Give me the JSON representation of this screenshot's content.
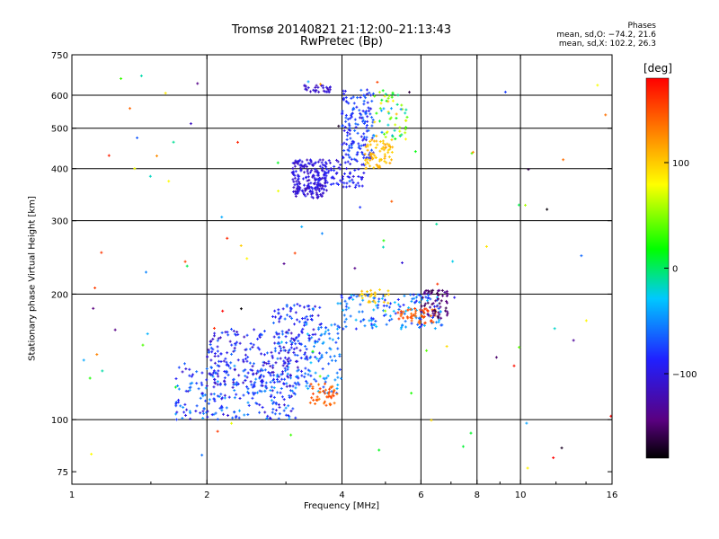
{
  "header": {
    "title": "Tromsø 20140821 21:12:00–21:13:43",
    "subtitle": "RwPretec (Bp)",
    "stats_title": "Phases",
    "stats_o": "mean, sd,O: −74.2, 21.6",
    "stats_x": "mean, sd,X: 102.2, 26.3"
  },
  "colorbar": {
    "label": "[deg]",
    "range": [
      -180,
      180
    ],
    "ticks": [
      100,
      0,
      -100
    ],
    "tick_labels": [
      "100",
      "0",
      "−100"
    ],
    "colors": [
      "#000000",
      "#5a0080",
      "#2020ff",
      "#00c8ff",
      "#00ff00",
      "#ffff00",
      "#ff8000",
      "#ff0000"
    ]
  },
  "chart_data": {
    "type": "scatter",
    "title": "Tromsø 20140821 21:12:00–21:13:43",
    "subtitle": "RwPretec (Bp)",
    "xlabel": "Frequency [MHz]",
    "ylabel": "Stationary phase Virtual Height [km]",
    "x_scale": "log",
    "y_scale": "log",
    "xlim": [
      1,
      16
    ],
    "ylim": [
      70,
      750
    ],
    "x_ticks": [
      1,
      2,
      4,
      6,
      8,
      10,
      16
    ],
    "x_tick_labels": [
      "1",
      "2",
      "4",
      "6",
      "8",
      "10",
      "16"
    ],
    "y_ticks": [
      75,
      100,
      200,
      300,
      400,
      500,
      600,
      750
    ],
    "y_tick_labels": [
      "75",
      "100",
      "200",
      "300",
      "400",
      "500",
      "600",
      "750"
    ],
    "x_grid": [
      2,
      4,
      6,
      8,
      10
    ],
    "y_grid": [
      100,
      200,
      300,
      400,
      500,
      600
    ],
    "grid": true,
    "color_variable": "Phase [deg]",
    "clusters": [
      {
        "x_range": [
          1.7,
          3.2
        ],
        "y_range": [
          100,
          135
        ],
        "phase": [
          -110,
          -40
        ],
        "count": 260
      },
      {
        "x_range": [
          2.0,
          3.3
        ],
        "y_range": [
          120,
          165
        ],
        "phase": [
          -120,
          -60
        ],
        "count": 200
      },
      {
        "x_range": [
          2.8,
          3.6
        ],
        "y_range": [
          140,
          190
        ],
        "phase": [
          -110,
          -50
        ],
        "count": 110
      },
      {
        "x_range": [
          3.3,
          4.0
        ],
        "y_range": [
          115,
          170
        ],
        "phase": [
          -80,
          -30
        ],
        "count": 80
      },
      {
        "x_range": [
          3.4,
          3.9
        ],
        "y_range": [
          108,
          122
        ],
        "phase": [
          130,
          160
        ],
        "count": 45
      },
      {
        "x_range": [
          3.9,
          6.7
        ],
        "y_range": [
          165,
          200
        ],
        "phase": [
          -90,
          -30
        ],
        "count": 150
      },
      {
        "x_range": [
          5.3,
          6.5
        ],
        "y_range": [
          170,
          185
        ],
        "phase": [
          135,
          160
        ],
        "count": 50
      },
      {
        "x_range": [
          6.0,
          6.9
        ],
        "y_range": [
          175,
          205
        ],
        "phase": [
          -160,
          -130
        ],
        "count": 60
      },
      {
        "x_range": [
          4.3,
          5.2
        ],
        "y_range": [
          190,
          205
        ],
        "phase": [
          90,
          110
        ],
        "count": 25
      },
      {
        "x_range": [
          3.1,
          3.7
        ],
        "y_range": [
          340,
          420
        ],
        "phase": [
          -120,
          -90
        ],
        "count": 200
      },
      {
        "x_range": [
          3.5,
          4.5
        ],
        "y_range": [
          360,
          420
        ],
        "phase": [
          -110,
          -80
        ],
        "count": 80
      },
      {
        "x_range": [
          4.0,
          4.7
        ],
        "y_range": [
          420,
          620
        ],
        "phase": [
          -100,
          -60
        ],
        "count": 150
      },
      {
        "x_range": [
          4.5,
          5.2
        ],
        "y_range": [
          400,
          470
        ],
        "phase": [
          95,
          120
        ],
        "count": 70
      },
      {
        "x_range": [
          4.7,
          5.6
        ],
        "y_range": [
          470,
          620
        ],
        "phase": [
          -60,
          110
        ],
        "count": 60
      },
      {
        "x_range": [
          3.3,
          3.8
        ],
        "y_range": [
          610,
          635
        ],
        "phase": [
          -120,
          -100
        ],
        "count": 30
      },
      {
        "x_range": [
          1.05,
          16
        ],
        "y_range": [
          75,
          700
        ],
        "phase": [
          -180,
          180
        ],
        "count": 100
      }
    ]
  }
}
